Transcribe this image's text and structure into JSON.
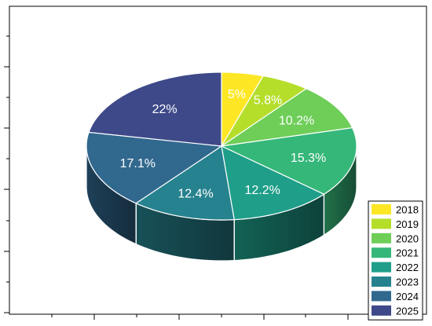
{
  "chart_data": {
    "type": "pie",
    "style": "3d-exploded-cylinder",
    "start_angle": "top",
    "direction": "clockwise",
    "slices": [
      {
        "label": "2018",
        "value": 5,
        "display": "5%",
        "color": "#fde725"
      },
      {
        "label": "2019",
        "value": 5.8,
        "display": "5.8%",
        "color": "#b5de2b"
      },
      {
        "label": "2020",
        "value": 10.2,
        "display": "10.2%",
        "color": "#6ece58"
      },
      {
        "label": "2021",
        "value": 15.3,
        "display": "15.3%",
        "color": "#35b779"
      },
      {
        "label": "2022",
        "value": 12.2,
        "display": "12.2%",
        "color": "#1f9e89"
      },
      {
        "label": "2023",
        "value": 12.4,
        "display": "12.4%",
        "color": "#26828e"
      },
      {
        "label": "2024",
        "value": 17.1,
        "display": "17.1%",
        "color": "#31688e"
      },
      {
        "label": "2025",
        "value": 22,
        "display": "22%",
        "color": "#3e4989"
      }
    ],
    "legend_position": "bottom-right",
    "frame": "box with tick marks on left and bottom edges",
    "title": "",
    "xlabel": "",
    "ylabel": ""
  }
}
